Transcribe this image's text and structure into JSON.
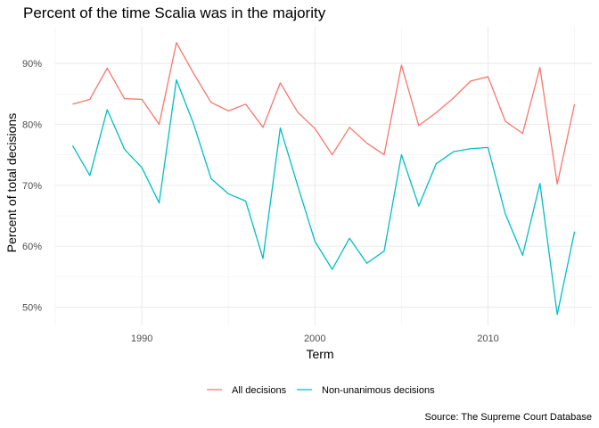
{
  "chart_data": {
    "type": "line",
    "title": "Percent of the time Scalia was in the majority",
    "xlabel": "Term",
    "ylabel": "Percent of total decisions",
    "caption": "Source: The Supreme Court Database",
    "xlim": [
      1985,
      2016
    ],
    "ylim": [
      47,
      96
    ],
    "x_ticks": [
      1990,
      2000,
      2010
    ],
    "y_ticks": [
      50,
      60,
      70,
      80,
      90
    ],
    "y_tick_labels": [
      "50%",
      "60%",
      "70%",
      "80%",
      "90%"
    ],
    "grid": true,
    "legend_position": "bottom",
    "x": [
      1986,
      1987,
      1988,
      1989,
      1990,
      1991,
      1992,
      1993,
      1994,
      1995,
      1996,
      1997,
      1998,
      1999,
      2000,
      2001,
      2002,
      2003,
      2004,
      2005,
      2006,
      2007,
      2008,
      2009,
      2010,
      2011,
      2012,
      2013,
      2014,
      2015
    ],
    "series": [
      {
        "name": "All decisions",
        "color": "#F8766D",
        "values": [
          83.3,
          84.1,
          89.2,
          84.2,
          84.1,
          80.0,
          93.4,
          88.3,
          83.6,
          82.2,
          83.3,
          79.5,
          86.8,
          82.0,
          79.3,
          75.0,
          79.5,
          76.9,
          75.0,
          89.7,
          79.8,
          81.9,
          84.3,
          87.1,
          87.8,
          80.5,
          78.5,
          89.3,
          70.2,
          83.3
        ]
      },
      {
        "name": "Non-unanimous decisions",
        "color": "#00BFC4",
        "values": [
          76.5,
          71.6,
          82.4,
          75.9,
          72.9,
          67.1,
          87.3,
          80.0,
          71.1,
          68.6,
          67.4,
          58.0,
          79.4,
          70.0,
          60.8,
          56.2,
          61.3,
          57.2,
          59.2,
          75.0,
          66.6,
          73.5,
          75.5,
          76.0,
          76.2,
          65.3,
          58.5,
          70.3,
          48.8,
          62.4
        ]
      }
    ]
  }
}
